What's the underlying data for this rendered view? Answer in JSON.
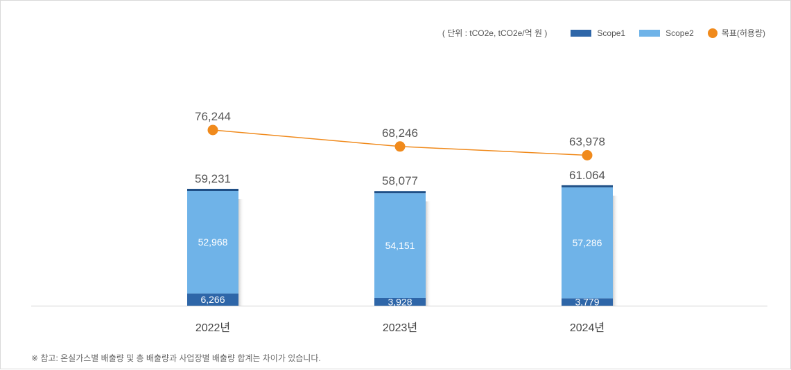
{
  "legend": {
    "unit": "( 단위 : tCO2e, tCO2e/억 원 )",
    "scope1": "Scope1",
    "scope2": "Scope2",
    "target": "목표(허용량)"
  },
  "colors": {
    "scope1": "#2e66a8",
    "scope2": "#6fb3e8",
    "top_edge": "#1f4f86",
    "target": "#f08a1c",
    "axis": "#cfcfcf",
    "label_dark": "#555555"
  },
  "chart_data": {
    "type": "bar",
    "stacked": true,
    "categories": [
      "2022년",
      "2023년",
      "2024년"
    ],
    "series": [
      {
        "name": "Scope1",
        "values": [
          6266,
          3928,
          3779
        ],
        "labels": [
          "6,266",
          "3,928",
          "3,779"
        ]
      },
      {
        "name": "Scope2",
        "values": [
          52968,
          54151,
          57286
        ],
        "labels": [
          "52,968",
          "54,151",
          "57,286"
        ]
      }
    ],
    "totals": {
      "values": [
        59231,
        58077,
        61064
      ],
      "labels": [
        "59,231",
        "58,077",
        "61.064"
      ]
    },
    "line_series": {
      "name": "목표(허용량)",
      "values": [
        76244,
        68246,
        63978
      ],
      "labels": [
        "76,244",
        "68,246",
        "63,978"
      ]
    },
    "ylim": [
      0,
      76244
    ],
    "grid": false,
    "legend_position": "top-right"
  },
  "footnote": "※ 참고: 온실가스별 배출량 및 총 배출량과 사업장별 배출량 합계는 차이가 있습니다."
}
